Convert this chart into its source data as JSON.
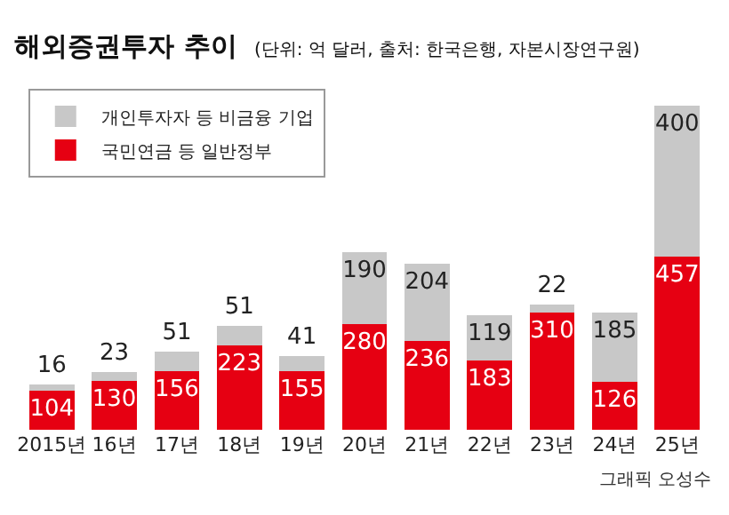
{
  "chart_data": {
    "type": "bar",
    "title": "해외증권투자 추이",
    "subtitle": "(단위: 억 달러, 출처: 한국은행, 자본시장연구원)",
    "categories": [
      "2015년",
      "16년",
      "17년",
      "18년",
      "19년",
      "20년",
      "21년",
      "22년",
      "23년",
      "24년",
      "25년"
    ],
    "stacked": true,
    "data_labels": true,
    "legend": "top left",
    "grid": false,
    "tick_labels": "x",
    "series": [
      {
        "name": "국민연금 등 일반정부",
        "color": "#e60012",
        "values": [
          104,
          130,
          156,
          223,
          155,
          280,
          236,
          183,
          310,
          126,
          457
        ]
      },
      {
        "name": "개인투자자 등 비금융 기업",
        "color": "#c8c8c8",
        "values": [
          16,
          23,
          51,
          51,
          41,
          190,
          204,
          119,
          22,
          185,
          400
        ]
      }
    ],
    "annotations": [
      "그래픽 오성수"
    ]
  }
}
